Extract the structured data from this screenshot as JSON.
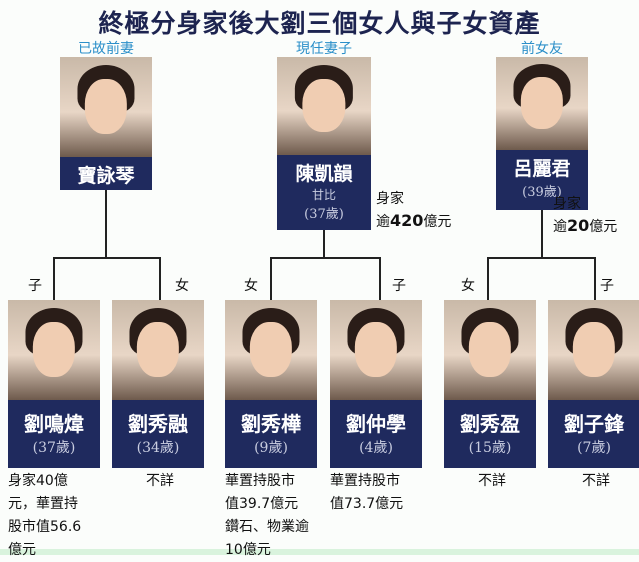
{
  "title": "終極分身家後大劉三個女人與子女資產",
  "mothers": [
    {
      "role": "已故前妻",
      "name": "寶詠琴"
    },
    {
      "role": "現任妻子",
      "name": "陳凱韻",
      "alias": "甘比",
      "age": "(37歲)",
      "wealth_line1": "身家",
      "wealth_line2_pre": "逾",
      "wealth_amount": "420",
      "wealth_unit": "億元"
    },
    {
      "role": "前女友",
      "name": "呂麗君",
      "age": "(39歲)",
      "wealth_line1": "身家",
      "wealth_line2_pre": "逾",
      "wealth_amount": "20",
      "wealth_unit": "億元"
    }
  ],
  "children": [
    {
      "sex": "子",
      "name": "劉鳴煒",
      "age": "(37歲)",
      "note": [
        "身家40億",
        "元，華置持",
        "股市值56.6",
        "億元"
      ]
    },
    {
      "sex": "女",
      "name": "劉秀融",
      "age": "(34歲)",
      "note": [
        "不詳"
      ]
    },
    {
      "sex": "女",
      "name": "劉秀樺",
      "age": "(9歲)",
      "note": [
        "華置持股市",
        "值39.7億元",
        "鑽石、物業逾",
        "10億元"
      ]
    },
    {
      "sex": "子",
      "name": "劉仲學",
      "age": "(4歲)",
      "note": [
        "華置持股市",
        "值73.7億元"
      ]
    },
    {
      "sex": "女",
      "name": "劉秀盈",
      "age": "(15歲)",
      "note": [
        "不詳"
      ]
    },
    {
      "sex": "子",
      "name": "劉子鋒",
      "age": "(7歲)",
      "note": [
        "不詳"
      ]
    }
  ]
}
